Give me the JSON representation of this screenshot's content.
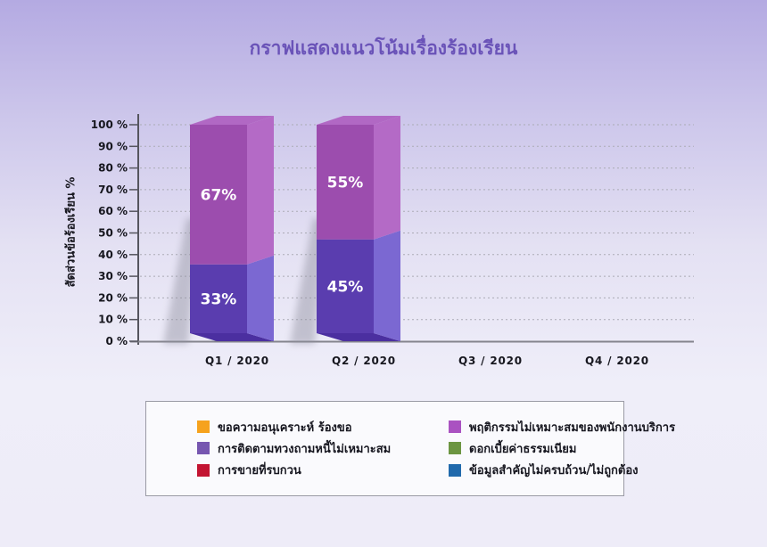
{
  "chart_data": {
    "type": "bar",
    "stacked": true,
    "title": "กราฟแสดงแนวโน้มเรื่องร้องเรียน",
    "ylabel": "สัดส่วนข้อร้องเรียน %",
    "xlabel": "",
    "ylim": [
      0,
      100
    ],
    "ytick_step": 10,
    "ytick_labels": [
      "0 %",
      "10 %",
      "20 %",
      "30 %",
      "40 %",
      "50 %",
      "60 %",
      "70 %",
      "80 %",
      "90 %",
      "100 %"
    ],
    "categories": [
      "Q1 / 2020",
      "Q2 / 2020",
      "Q3 / 2020",
      "Q4 / 2020"
    ],
    "grid": "dotted-horizontal",
    "legend_position": "bottom",
    "series": [
      {
        "name": "การติดตามทวงถามหนี้ไม่เหมาะสม",
        "values": [
          33,
          45,
          null,
          null
        ],
        "data_labels": [
          "33%",
          "45%",
          "",
          ""
        ],
        "color_front": "#5A3DAF",
        "color_side": "#7B68D2"
      },
      {
        "name": "พฤติกรรมไม่เหมาะสมของพนักงานบริการ",
        "values": [
          67,
          55,
          null,
          null
        ],
        "data_labels": [
          "67%",
          "55%",
          "",
          ""
        ],
        "color_front": "#9C4DAE",
        "color_side": "#B46AC6",
        "color_top": "#B168C4"
      }
    ],
    "bar_bottom_color": "#4B2FA0",
    "value_label_color": "#FFFFFF"
  },
  "legend": {
    "items": [
      {
        "label": "ขอความอนุเคราะห์ ร้องขอ",
        "color": "#F6A21E"
      },
      {
        "label": "การติดตามทวงถามหนี้ไม่เหมาะสม",
        "color": "#7656B0"
      },
      {
        "label": "การขายที่รบกวน",
        "color": "#C31432"
      },
      {
        "label": "พฤติกรรมไม่เหมาะสมของพนักงานบริการ",
        "color": "#AA52C1"
      },
      {
        "label": "ดอกเบี้ยค่าธรรมเนียม",
        "color": "#6C9542"
      },
      {
        "label": "ข้อมูลสำคัญไม่ครบถ้วน/ไม่ถูกต้อง",
        "color": "#2069AC"
      }
    ]
  },
  "colors": {
    "title": "#6A53B8",
    "background_top": "#B4AAE2",
    "background_bottom": "#EEECF8",
    "axis": "#55555E",
    "gridline": "#ABABB5",
    "tick_label": "#16161E"
  }
}
